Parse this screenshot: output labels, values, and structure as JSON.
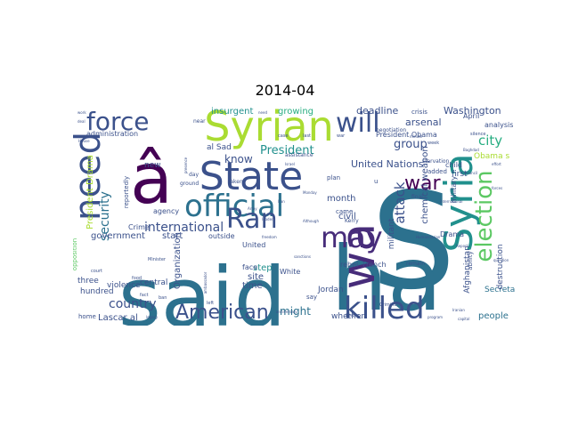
{
  "title": "2014-04",
  "colors": {
    "dark_purple": "#440154",
    "purple": "#472c7a",
    "indigo": "#3b518b",
    "blue": "#2c718e",
    "teal": "#21908d",
    "green": "#27ad81",
    "light_green": "#5cc863",
    "lime": "#aadc32",
    "yellow": "#e6d82a"
  },
  "words": [
    {
      "text": "S",
      "color": "blue"
    },
    {
      "text": "said",
      "color": "blue"
    },
    {
      "text": "ha",
      "color": "blue"
    },
    {
      "text": "â",
      "color": "dark_purple"
    },
    {
      "text": "wa",
      "color": "purple"
    },
    {
      "text": "Syrian",
      "color": "lime"
    },
    {
      "text": "State",
      "color": "indigo"
    },
    {
      "text": "Syria",
      "color": "teal"
    },
    {
      "text": "need",
      "color": "indigo"
    },
    {
      "text": "force",
      "color": "indigo"
    },
    {
      "text": "will",
      "color": "indigo"
    },
    {
      "text": "official",
      "color": "blue"
    },
    {
      "text": "Ran",
      "color": "indigo"
    },
    {
      "text": "may",
      "color": "purple"
    },
    {
      "text": "killed",
      "color": "indigo"
    },
    {
      "text": "election",
      "color": "light_green"
    },
    {
      "text": "American",
      "color": "indigo"
    },
    {
      "text": "war",
      "color": "dark_purple"
    },
    {
      "text": "international",
      "color": "indigo"
    },
    {
      "text": "President",
      "color": "teal"
    },
    {
      "text": "security",
      "color": "blue"
    },
    {
      "text": "country",
      "color": "indigo"
    },
    {
      "text": "group",
      "color": "indigo"
    },
    {
      "text": "city",
      "color": "green"
    },
    {
      "text": "attack",
      "color": "indigo"
    },
    {
      "text": "United Nations",
      "color": "indigo"
    },
    {
      "text": "insurgent",
      "color": "teal"
    },
    {
      "text": "growing",
      "color": "green"
    },
    {
      "text": "deadline",
      "color": "indigo"
    },
    {
      "text": "arsenal",
      "color": "indigo"
    },
    {
      "text": "know",
      "color": "indigo"
    },
    {
      "text": "might",
      "color": "blue"
    },
    {
      "text": "month",
      "color": "indigo"
    },
    {
      "text": "civil",
      "color": "indigo"
    },
    {
      "text": "chemical weapon",
      "color": "indigo"
    },
    {
      "text": "government",
      "color": "indigo"
    },
    {
      "text": "President Drama",
      "color": "lime"
    },
    {
      "text": "Washington",
      "color": "indigo"
    },
    {
      "text": "al Sad",
      "color": "indigo"
    },
    {
      "text": "President Obama",
      "color": "indigo"
    },
    {
      "text": "administration",
      "color": "indigo"
    },
    {
      "text": "Lascar al",
      "color": "indigo"
    },
    {
      "text": "people",
      "color": "blue"
    },
    {
      "text": "Secretary",
      "color": "blue"
    },
    {
      "text": "time",
      "color": "indigo"
    },
    {
      "text": "step",
      "color": "teal"
    },
    {
      "text": "site",
      "color": "indigo"
    },
    {
      "text": "start",
      "color": "indigo"
    },
    {
      "text": "new",
      "color": "indigo"
    },
    {
      "text": "central",
      "color": "indigo"
    },
    {
      "text": "violence",
      "color": "indigo"
    },
    {
      "text": "hundred",
      "color": "indigo"
    },
    {
      "text": "three",
      "color": "indigo"
    },
    {
      "text": "Organization",
      "color": "indigo"
    },
    {
      "text": "Afghanistan",
      "color": "indigo"
    },
    {
      "text": "Jordan",
      "color": "indigo"
    },
    {
      "text": "rebel",
      "color": "indigo"
    },
    {
      "text": "French",
      "color": "indigo"
    },
    {
      "text": "destruction",
      "color": "indigo"
    },
    {
      "text": "militant",
      "color": "indigo"
    },
    {
      "text": "child",
      "color": "indigo"
    },
    {
      "text": "first",
      "color": "indigo"
    },
    {
      "text": "military",
      "color": "indigo"
    },
    {
      "text": "Drama",
      "color": "indigo"
    },
    {
      "text": "analysis",
      "color": "indigo"
    },
    {
      "text": "April",
      "color": "indigo"
    },
    {
      "text": "Obama s",
      "color": "lime"
    },
    {
      "text": "Crime",
      "color": "indigo"
    },
    {
      "text": "agency",
      "color": "indigo"
    },
    {
      "text": "outside",
      "color": "indigo"
    },
    {
      "text": "United",
      "color": "indigo"
    },
    {
      "text": "White",
      "color": "indigo"
    },
    {
      "text": "face",
      "color": "indigo"
    },
    {
      "text": "whether",
      "color": "indigo"
    },
    {
      "text": "crisis",
      "color": "indigo"
    },
    {
      "text": "negotiation",
      "color": "indigo"
    },
    {
      "text": "starvation",
      "color": "indigo"
    },
    {
      "text": "reportedly",
      "color": "indigo"
    },
    {
      "text": "opposition",
      "color": "light_green"
    },
    {
      "text": "ability",
      "color": "indigo"
    },
    {
      "text": "final",
      "color": "indigo"
    },
    {
      "text": "remain",
      "color": "indigo"
    },
    {
      "text": "came",
      "color": "indigo"
    },
    {
      "text": "say",
      "color": "indigo"
    },
    {
      "text": "added",
      "color": "indigo"
    },
    {
      "text": "plan",
      "color": "indigo"
    },
    {
      "text": "taken",
      "color": "indigo"
    },
    {
      "text": "home",
      "color": "indigo"
    },
    {
      "text": "ground",
      "color": "indigo"
    },
    {
      "text": "day",
      "color": "indigo"
    },
    {
      "text": "near",
      "color": "indigo"
    },
    {
      "text": "court",
      "color": "indigo"
    },
    {
      "text": "food",
      "color": "indigo"
    },
    {
      "text": "fact",
      "color": "indigo"
    },
    {
      "text": "Minister",
      "color": "indigo"
    },
    {
      "text": "assistance",
      "color": "indigo"
    },
    {
      "text": "Kerry",
      "color": "indigo"
    },
    {
      "text": "u",
      "color": "indigo"
    },
    {
      "text": "ban",
      "color": "indigo"
    },
    {
      "text": "case",
      "color": "indigo"
    },
    {
      "text": "left",
      "color": "indigo"
    },
    {
      "text": "week",
      "color": "indigo"
    },
    {
      "text": "need",
      "color": "indigo"
    },
    {
      "text": "last",
      "color": "indigo"
    },
    {
      "text": "war",
      "color": "indigo"
    },
    {
      "text": "deal",
      "color": "indigo"
    },
    {
      "text": "Israel",
      "color": "indigo"
    },
    {
      "text": "Army",
      "color": "indigo"
    },
    {
      "text": "leader",
      "color": "indigo"
    },
    {
      "text": "work",
      "color": "indigo"
    },
    {
      "text": "House",
      "color": "indigo"
    },
    {
      "text": "Iran",
      "color": "indigo"
    },
    {
      "text": "anniversary",
      "color": "indigo"
    },
    {
      "text": "program",
      "color": "indigo"
    },
    {
      "text": "capital",
      "color": "indigo"
    },
    {
      "text": "Despite",
      "color": "indigo"
    },
    {
      "text": "Baghdad",
      "color": "indigo"
    },
    {
      "text": "minute",
      "color": "indigo"
    },
    {
      "text": "Criminal",
      "color": "indigo"
    },
    {
      "text": "question",
      "color": "indigo"
    },
    {
      "text": "forces",
      "color": "indigo"
    },
    {
      "text": "Monday",
      "color": "indigo"
    },
    {
      "text": "freedom",
      "color": "indigo"
    },
    {
      "text": "ambassador",
      "color": "indigo"
    },
    {
      "text": "presence",
      "color": "indigo"
    },
    {
      "text": "sanctions",
      "color": "indigo"
    },
    {
      "text": "Although",
      "color": "indigo"
    },
    {
      "text": "legacy",
      "color": "indigo"
    },
    {
      "text": "Humanitarian",
      "color": "indigo"
    },
    {
      "text": "international",
      "color": "indigo"
    },
    {
      "text": "Iranian",
      "color": "indigo"
    },
    {
      "text": "effort",
      "color": "indigo"
    },
    {
      "text": "silence",
      "color": "indigo"
    },
    {
      "text": "Report",
      "color": "indigo"
    },
    {
      "text": "council",
      "color": "indigo"
    }
  ]
}
